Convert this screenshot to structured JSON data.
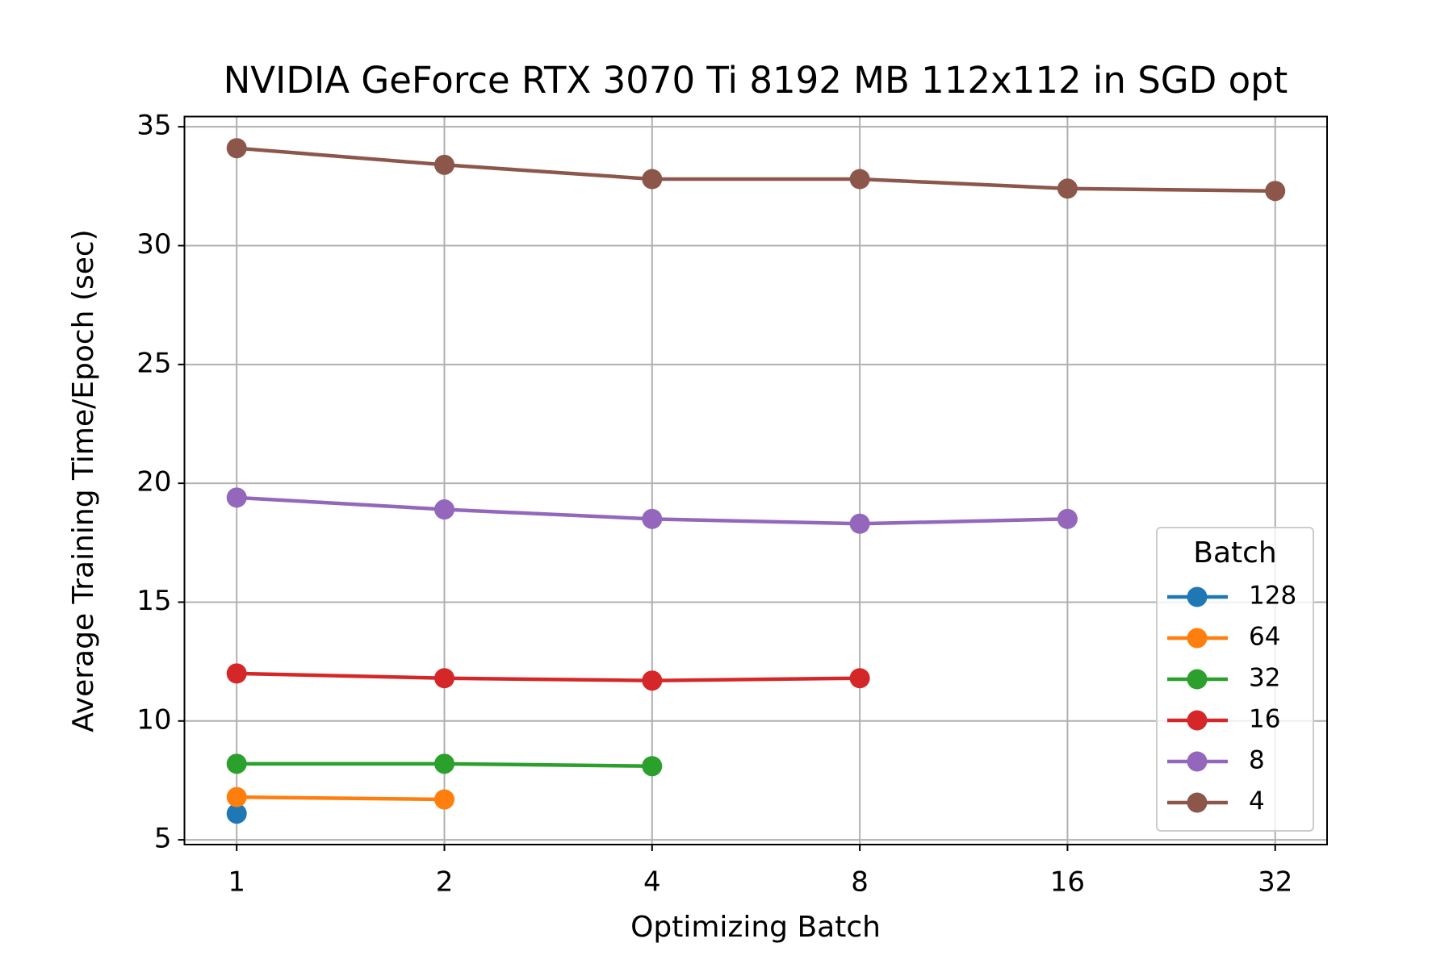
{
  "chart_data": {
    "type": "line",
    "title": "NVIDIA GeForce RTX 3070 Ti 8192 MB 112x112 in SGD opt",
    "x_label": "Optimizing Batch",
    "y_label": "Average Training Time/Epoch (sec)",
    "x": [
      1,
      2,
      4,
      8,
      16,
      32
    ],
    "xscale": "log",
    "xlogbase": 2,
    "xlim": [
      0.84,
      38.05
    ],
    "xticks": [
      1,
      2,
      4,
      8,
      16,
      32
    ],
    "ylim": [
      4.8,
      35.43
    ],
    "yticks": [
      5,
      10,
      15,
      20,
      25,
      30,
      35
    ],
    "grid": true,
    "legend_title": "Batch",
    "legend_position": "lower right",
    "series": [
      {
        "name": "128",
        "color": "#1f77b4",
        "values": [
          6.1,
          null,
          null,
          null,
          null,
          null
        ]
      },
      {
        "name": "64",
        "color": "#ff7f0e",
        "values": [
          6.8,
          6.7,
          null,
          null,
          null,
          null
        ]
      },
      {
        "name": "32",
        "color": "#2ca02c",
        "values": [
          8.2,
          8.2,
          8.1,
          null,
          null,
          null
        ]
      },
      {
        "name": "16",
        "color": "#d62728",
        "values": [
          12.0,
          11.8,
          11.7,
          11.8,
          null,
          null
        ]
      },
      {
        "name": "8",
        "color": "#9467bd",
        "values": [
          19.4,
          18.9,
          18.5,
          18.3,
          18.5,
          null
        ]
      },
      {
        "name": "4",
        "color": "#8c564b",
        "values": [
          34.1,
          33.4,
          32.8,
          32.8,
          32.4,
          32.3
        ]
      }
    ]
  }
}
